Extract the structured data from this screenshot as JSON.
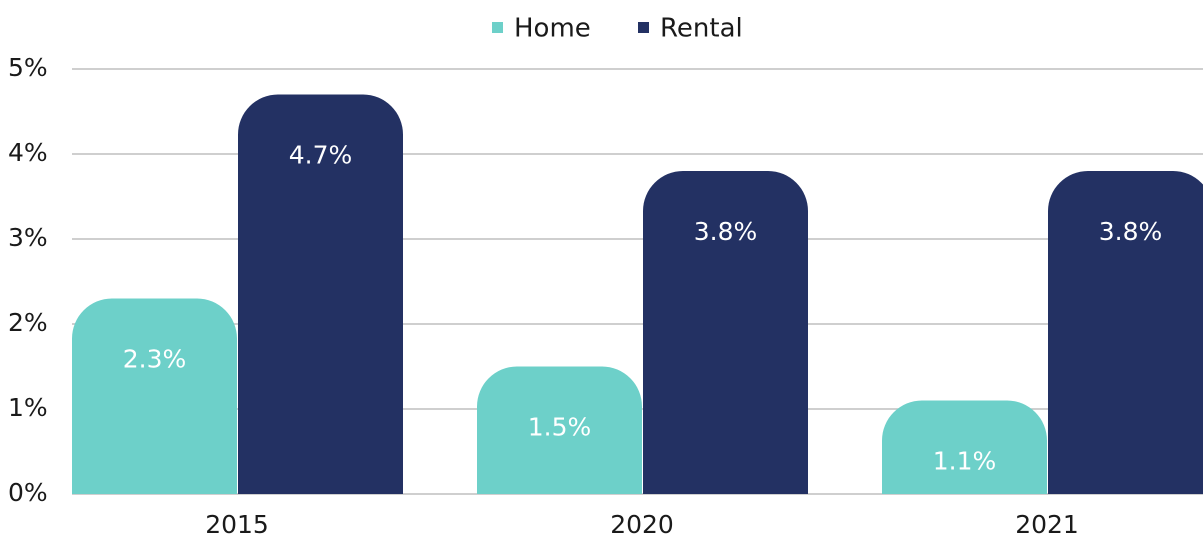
{
  "chart_data": {
    "type": "bar",
    "categories": [
      "2015",
      "2020",
      "2021"
    ],
    "series": [
      {
        "name": "Home",
        "color": "#6dd0c9",
        "values": [
          2.3,
          1.5,
          1.1
        ],
        "value_labels": [
          "2.3%",
          "1.5%",
          "1.1%"
        ]
      },
      {
        "name": "Rental",
        "color": "#233163",
        "values": [
          4.7,
          3.8,
          3.8
        ],
        "value_labels": [
          "4.7%",
          "3.8%",
          "3.8%"
        ]
      }
    ],
    "ylim": [
      0,
      5
    ],
    "yticks": [
      {
        "value": 0,
        "label": "0%"
      },
      {
        "value": 1,
        "label": "1%"
      },
      {
        "value": 2,
        "label": "2%"
      },
      {
        "value": 3,
        "label": "3%"
      },
      {
        "value": 4,
        "label": "4%"
      },
      {
        "value": 5,
        "label": "5%"
      }
    ],
    "grid": true,
    "legend": "top"
  }
}
